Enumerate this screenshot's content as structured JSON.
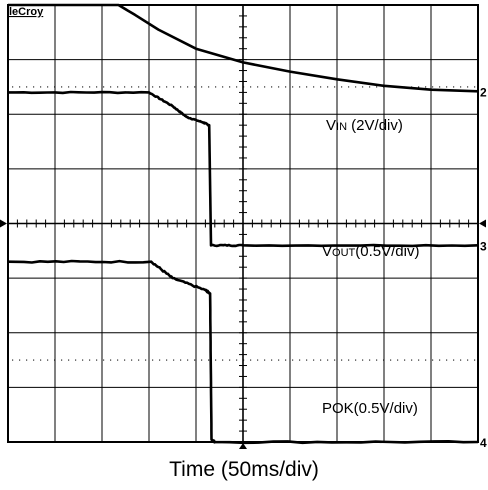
{
  "brand": "leCroy",
  "labels": {
    "vin_main": "V",
    "vin_sub": "IN",
    "vin_rest": " (2V/div)",
    "vout_main": "V",
    "vout_sub": "OUT",
    "vout_rest": "(0.5V/div)",
    "pok": "POK(0.5V/div)",
    "xaxis": "Time (50ms/div)"
  },
  "chart_data": {
    "type": "line",
    "grid": true,
    "x_divisions": 10,
    "y_divisions": 8,
    "xlim": [
      0,
      10
    ],
    "ylim": [
      0,
      8
    ],
    "xlabel": "Time (50ms/div)",
    "channel_markers": [
      "2",
      "3",
      "4"
    ],
    "series": [
      {
        "name": "VIN (2V/div)",
        "marker": "2",
        "x": [
          0,
          2.35,
          2.7,
          3.2,
          4.0,
          5.0,
          6.0,
          7.0,
          8.0,
          9.0,
          10.0
        ],
        "y": [
          8.0,
          8.0,
          7.82,
          7.55,
          7.2,
          6.95,
          6.78,
          6.64,
          6.52,
          6.45,
          6.42
        ]
      },
      {
        "name": "VOUT(0.5V/div)",
        "marker": "3",
        "x": [
          0,
          3.0,
          3.5,
          3.8,
          4.15,
          4.28,
          4.32,
          5.0,
          10.0
        ],
        "y": [
          6.4,
          6.4,
          6.15,
          5.95,
          5.85,
          5.8,
          3.6,
          3.6,
          3.6
        ],
        "noise": 0.02
      },
      {
        "name": "POK(0.5V/div)",
        "marker": "4",
        "x": [
          0,
          3.05,
          3.5,
          4.2,
          4.3,
          4.33,
          4.4,
          10.0
        ],
        "y": [
          3.3,
          3.3,
          3.0,
          2.78,
          2.72,
          0.05,
          0.0,
          0.0
        ],
        "noise": 0.03
      }
    ]
  }
}
